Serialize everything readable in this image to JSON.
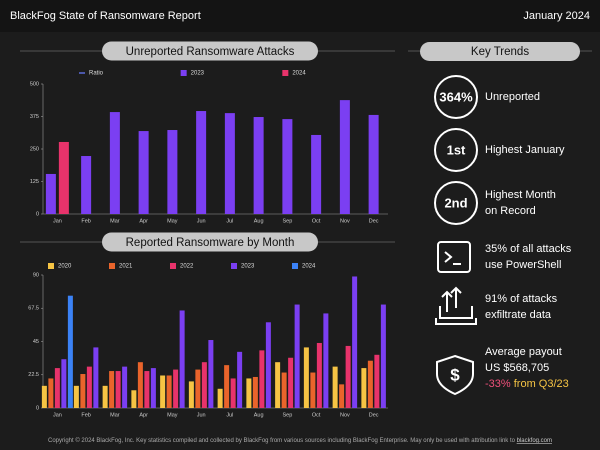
{
  "header": {
    "title": "BlackFog State of Ransomware Report",
    "date": "January 2024"
  },
  "chart_data": [
    {
      "type": "bar",
      "title": "Unreported Ransomware Attacks",
      "categories": [
        "Jan",
        "Feb",
        "Mar",
        "Apr",
        "May",
        "Jun",
        "Jul",
        "Aug",
        "Sep",
        "Oct",
        "Nov",
        "Dec"
      ],
      "series": [
        {
          "name": "Ratio",
          "type": "line",
          "color": "#5b6bd8",
          "values": [
            null,
            null,
            null,
            null,
            null,
            null,
            null,
            null,
            null,
            null,
            null,
            null
          ]
        },
        {
          "name": "2023",
          "color": "#7b3ff2",
          "values": [
            154,
            223,
            392,
            319,
            323,
            396,
            388,
            373,
            365,
            304,
            438,
            381
          ]
        },
        {
          "name": "2024",
          "color": "#e8336b",
          "values": [
            277,
            null,
            null,
            null,
            null,
            null,
            null,
            null,
            null,
            null,
            null,
            null
          ]
        }
      ],
      "ylim": [
        0,
        500
      ],
      "yticks": [
        0,
        125,
        250,
        375,
        500
      ],
      "grid": false
    },
    {
      "type": "bar",
      "title": "Reported Ransomware by Month",
      "categories": [
        "Jan",
        "Feb",
        "Mar",
        "Apr",
        "May",
        "Jun",
        "Jul",
        "Aug",
        "Sep",
        "Oct",
        "Nov",
        "Dec"
      ],
      "series": [
        {
          "name": "2020",
          "color": "#f6c444",
          "values": [
            15,
            15,
            15,
            12,
            22,
            18,
            13,
            20,
            31,
            41,
            28,
            27
          ]
        },
        {
          "name": "2021",
          "color": "#e9642b",
          "values": [
            20,
            23,
            25,
            31,
            22,
            26,
            29,
            21,
            24,
            24,
            16,
            32
          ]
        },
        {
          "name": "2022",
          "color": "#e8336b",
          "values": [
            27,
            28,
            25,
            25,
            26,
            31,
            20,
            39,
            34,
            44,
            42,
            36
          ]
        },
        {
          "name": "2023",
          "color": "#7b3ff2",
          "values": [
            33,
            41,
            28,
            27,
            66,
            46,
            38,
            58,
            70,
            64,
            89,
            70
          ]
        },
        {
          "name": "2024",
          "color": "#3b82f6",
          "values": [
            76,
            null,
            null,
            null,
            null,
            null,
            null,
            null,
            null,
            null,
            null,
            null
          ]
        }
      ],
      "ylim": [
        0,
        90
      ],
      "yticks": [
        0,
        22.5,
        45,
        67.5,
        90
      ],
      "grid": false
    }
  ],
  "key_trends": {
    "title": "Key Trends",
    "items": [
      {
        "badge": "364%",
        "lines": [
          "Unreported"
        ]
      },
      {
        "badge": "1st",
        "lines": [
          "Highest January"
        ]
      },
      {
        "badge": "2nd",
        "lines": [
          "Highest Month",
          "on Record"
        ]
      },
      {
        "lines": [
          "35% of all attacks",
          "use PowerShell"
        ]
      },
      {
        "lines": [
          "91% of attacks",
          "exfiltrate data"
        ]
      },
      {
        "lines": [
          "Average payout",
          "US $568,705"
        ],
        "change": "-33%",
        "change_note": "from Q3/23"
      }
    ]
  },
  "footer": {
    "text": "Copyright © 2024 BlackFog, Inc. Key statistics compiled and collected by BlackFog from various sources including BlackFog Enterprise. May only be used with attribution link to ",
    "link": "blackfog.com"
  }
}
